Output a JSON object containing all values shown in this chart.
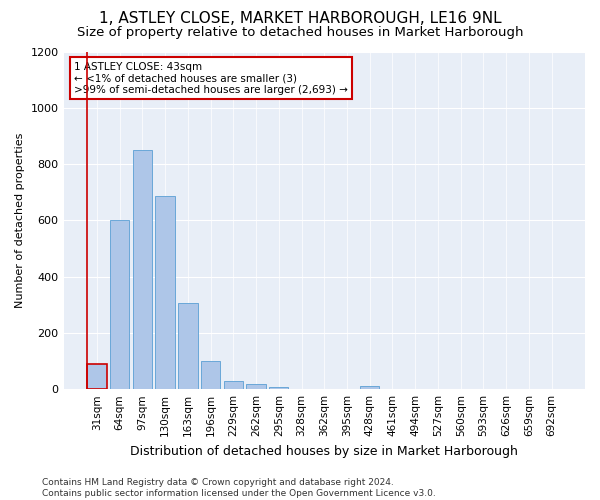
{
  "title": "1, ASTLEY CLOSE, MARKET HARBOROUGH, LE16 9NL",
  "subtitle": "Size of property relative to detached houses in Market Harborough",
  "xlabel": "Distribution of detached houses by size in Market Harborough",
  "ylabel": "Number of detached properties",
  "footer1": "Contains HM Land Registry data © Crown copyright and database right 2024.",
  "footer2": "Contains public sector information licensed under the Open Government Licence v3.0.",
  "annotation_line1": "1 ASTLEY CLOSE: 43sqm",
  "annotation_line2": "← <1% of detached houses are smaller (3)",
  "annotation_line3": ">99% of semi-detached houses are larger (2,693) →",
  "bar_labels": [
    "31sqm",
    "64sqm",
    "97sqm",
    "130sqm",
    "163sqm",
    "196sqm",
    "229sqm",
    "262sqm",
    "295sqm",
    "328sqm",
    "362sqm",
    "395sqm",
    "428sqm",
    "461sqm",
    "494sqm",
    "527sqm",
    "560sqm",
    "593sqm",
    "626sqm",
    "659sqm",
    "692sqm"
  ],
  "bar_values": [
    90,
    600,
    850,
    685,
    305,
    100,
    28,
    20,
    8,
    0,
    0,
    0,
    10,
    0,
    0,
    0,
    0,
    0,
    0,
    0,
    0
  ],
  "bar_color": "#aec6e8",
  "bar_edge_color": "#5a9fd4",
  "highlight_bar_index": 0,
  "highlight_color": "#cc0000",
  "annotation_box_color": "#cc0000",
  "ylim": [
    0,
    1200
  ],
  "yticks": [
    0,
    200,
    400,
    600,
    800,
    1000,
    1200
  ],
  "background_color": "#e8eef7",
  "fig_bg": "#ffffff",
  "title_fontsize": 11,
  "subtitle_fontsize": 9.5,
  "annotation_fontsize": 7.5,
  "axis_fontsize": 8,
  "ylabel_fontsize": 8,
  "xlabel_fontsize": 9,
  "footer_fontsize": 6.5
}
